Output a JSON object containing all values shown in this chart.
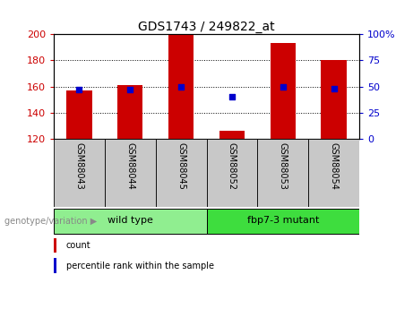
{
  "title": "GDS1743 / 249822_at",
  "samples": [
    "GSM88043",
    "GSM88044",
    "GSM88045",
    "GSM88052",
    "GSM88053",
    "GSM88054"
  ],
  "groups": [
    {
      "label": "wild type",
      "color": "#90EE90",
      "indices": [
        0,
        1,
        2
      ]
    },
    {
      "label": "fbp7-3 mutant",
      "color": "#3EDD3E",
      "indices": [
        3,
        4,
        5
      ]
    }
  ],
  "count_values": [
    157,
    161,
    199,
    126,
    193,
    180
  ],
  "percentile_values": [
    47,
    47,
    50,
    40,
    50,
    48
  ],
  "ylim_left": [
    120,
    200
  ],
  "ylim_right": [
    0,
    100
  ],
  "left_ticks": [
    120,
    140,
    160,
    180,
    200
  ],
  "right_ticks": [
    0,
    25,
    50,
    75,
    100
  ],
  "bar_color": "#CC0000",
  "dot_color": "#0000CC",
  "left_tick_color": "#CC0000",
  "right_tick_color": "#0000CC",
  "group_label": "genotype/variation",
  "legend_count": "count",
  "legend_percentile": "percentile rank within the sample",
  "sample_bg_color": "#C8C8C8",
  "bar_width": 0.5,
  "title_fontsize": 10,
  "tick_fontsize": 8,
  "label_fontsize": 7.5,
  "legend_fontsize": 7
}
